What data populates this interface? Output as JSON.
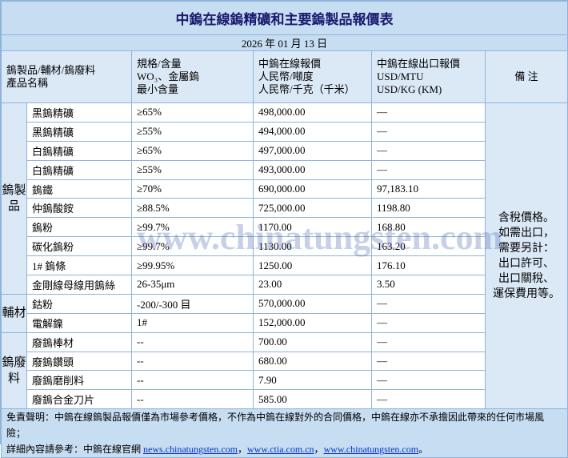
{
  "title": "中鎢在線鎢精礦和主要鎢製品報價表",
  "date": "2026 年 01 月 13 日",
  "headers": [
    [
      "鎢製品/輔材/鎢廢料",
      "產品名稱"
    ],
    [
      "規格/含量",
      "WO₃、金屬鎢",
      "最小含量"
    ],
    [
      "中鎢在線報價",
      "人民幣/噸度",
      "人民幣/千克（千米）"
    ],
    [
      "中鎢在線出口報價",
      "USD/MTU",
      "USD/KG (KM)"
    ],
    [
      "備 注"
    ]
  ],
  "groups": [
    {
      "label": "鎢製品",
      "rows": [
        [
          "黑鎢精礦",
          "≥65%",
          "498,000.00",
          "—"
        ],
        [
          "黑鎢精礦",
          "≥55%",
          "494,000.00",
          "—"
        ],
        [
          "白鎢精礦",
          "≥65%",
          "497,000.00",
          "—"
        ],
        [
          "白鎢精礦",
          "≥55%",
          "493,000.00",
          "—"
        ],
        [
          "鎢鐵",
          "≥70%",
          "690,000.00",
          "97,183.10"
        ],
        [
          "仲鎢酸銨",
          "≥88.5%",
          "725,000.00",
          "1198.80"
        ],
        [
          "鎢粉",
          "≥99.7%",
          "1170.00",
          "168.80"
        ],
        [
          "碳化鎢粉",
          "≥99.7%",
          "1130.00",
          "163.20"
        ],
        [
          "1#  鎢條",
          "≥99.95%",
          "1250.00",
          "176.10"
        ],
        [
          "金剛線母線用鎢絲",
          "26-35μm",
          "23.00",
          "3.50"
        ]
      ]
    },
    {
      "label": "輔材",
      "rows": [
        [
          "鈷粉",
          "-200/-300 目",
          "570,000.00",
          "—"
        ],
        [
          "電解鎳",
          "1#",
          "152,000.00",
          "—"
        ]
      ]
    },
    {
      "label": "鎢廢料",
      "rows": [
        [
          "廢鎢棒材",
          "--",
          "700.00",
          "—"
        ],
        [
          "廢鎢鑽頭",
          "--",
          "680.00",
          "—"
        ],
        [
          "廢鎢磨削料",
          "--",
          "7.90",
          "—"
        ],
        [
          "廢鎢合金刀片",
          "--",
          "585.00",
          "—"
        ]
      ]
    }
  ],
  "note": [
    "含稅價格。",
    "如需出口，",
    "需要另計：",
    "出口許可、",
    "出口關稅、",
    "運保費用等。"
  ],
  "watermark": "www.chinatungsten.com",
  "footer": {
    "disclaimer": "免責聲明：中鎢在線鎢製品報價僅為市場參考價格，不作為中鎢在線對外的合同價格，中鎢在線亦不承擔因此帶來的任何市場風險；",
    "prefix": "詳細內容請參考：中鎢在線官網 ",
    "links": [
      "news.chinatungsten.com",
      "www.ctia.com.cn",
      "www.chinatungsten.com"
    ],
    "separators": [
      "，",
      "，",
      "。"
    ]
  }
}
